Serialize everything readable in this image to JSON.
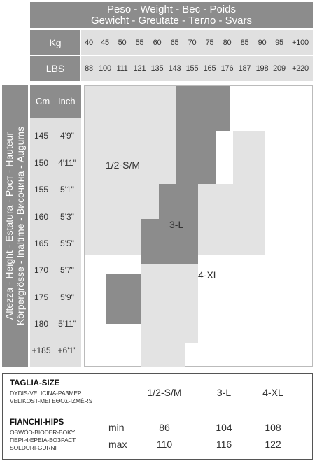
{
  "weight_header": {
    "line1": "Peso - Weight - Bec - Poids",
    "line2": "Gewicht - Greutate - Тегло - Svars"
  },
  "kg_label": "Kg",
  "lbs_label": "LBS",
  "kg_values": [
    "40",
    "45",
    "50",
    "55",
    "60",
    "65",
    "70",
    "75",
    "80",
    "85",
    "90",
    "95",
    "+100"
  ],
  "lbs_values": [
    "88",
    "100",
    "111",
    "121",
    "135",
    "143",
    "155",
    "165",
    "176",
    "187",
    "198",
    "209",
    "+220"
  ],
  "height_header": {
    "line1": "Altezza - Height - Estatura - Рост - Hauteur",
    "line2": "Körpergrösse - Inaltime - Височина - Augums"
  },
  "cm_label": "Cm",
  "inch_label": "Inch",
  "cm_values": [
    "145",
    "150",
    "155",
    "160",
    "165",
    "170",
    "175",
    "180",
    "+185"
  ],
  "inch_values": [
    "4'9\"",
    "4'11\"",
    "5'1\"",
    "5'3\"",
    "5'5\"",
    "5'7\"",
    "5'9\"",
    "5'11\"",
    "+6'1\""
  ],
  "zones": {
    "size1": "1/2-S/M",
    "size2": "3-L",
    "size3": "4-XL",
    "colors": {
      "size1": "#e3e3e3",
      "size2": "#8c8c8c",
      "size3": "#e3e3e3"
    }
  },
  "size_table": {
    "taglia_title": "TAGLIA-SIZE",
    "taglia_sub1": "DYDIS-VELICINA-РАЗМЕР",
    "taglia_sub2": "VELIKOST-ΜΕΓΕΘΟΣ-IZMĒRS",
    "sizes": [
      "1/2-S/M",
      "3-L",
      "4-XL"
    ],
    "hips_title": "FIANCHI-HIPS",
    "hips_sub1": "OBWÓD-BIODER-BOKY",
    "hips_sub2": "ΠΕΡΙ-ΦΕΡΕΙΑ-ВОЗРАСТ",
    "hips_sub3": "SOLDURI-GURNI",
    "min_label": "min",
    "max_label": "max",
    "min_values": [
      "86",
      "104",
      "108"
    ],
    "max_values": [
      "110",
      "116",
      "122"
    ]
  }
}
